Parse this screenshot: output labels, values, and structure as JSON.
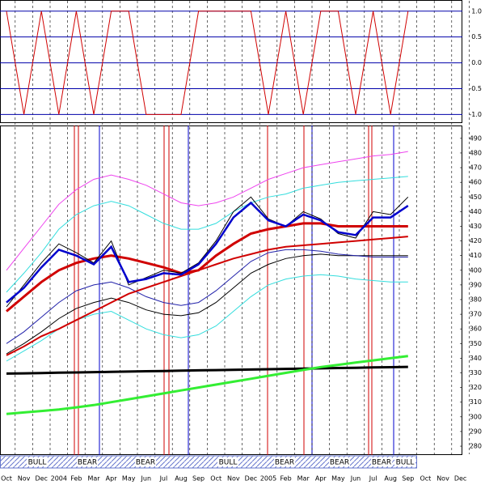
{
  "chart_data": [
    {
      "type": "line",
      "ylim": [
        -1.15,
        1.2
      ],
      "yticks": [
        {
          "value": 1,
          "label": "1.0"
        },
        0.5,
        {
          "value": 0,
          "label": "0.0"
        },
        -0.5,
        {
          "value": -1,
          "label": "-1.0"
        }
      ],
      "series": [
        {
          "color": "#d00000",
          "width": 1,
          "values": [
            1,
            -1,
            1,
            -1,
            1,
            -1,
            1,
            1,
            -1,
            -1,
            -1,
            1,
            1,
            1,
            1,
            -1,
            1,
            -1,
            1,
            1,
            -1,
            1,
            -1,
            1,
            null,
            null,
            null
          ]
        }
      ]
    },
    {
      "type": "line",
      "categories": [
        "Oct",
        "Nov",
        "Dec",
        "2004",
        "Feb",
        "Mar",
        "Apr",
        "May",
        "Jun",
        "Jul",
        "Aug",
        "Sep",
        "Oct",
        "Nov",
        "Dec",
        "2005",
        "Feb",
        "Mar",
        "Apr",
        "May",
        "Jun",
        "Jul",
        "Aug",
        "Sep",
        "Oct",
        "Nov",
        "Dec"
      ],
      "ylim": [
        274.5,
        498.2
      ],
      "yticks": [
        490,
        480,
        470,
        460,
        450,
        440,
        430,
        420,
        410,
        400,
        390,
        380,
        370,
        360,
        350,
        340,
        330,
        320,
        310,
        300,
        290,
        280
      ],
      "grid": true,
      "regimes": [
        "BULL",
        "BEAR",
        "BEAR",
        "BULL",
        "BEAR",
        "BEAR",
        "BEAR",
        "BULL"
      ],
      "series": [
        {
          "color": "#ee44ee",
          "width": 1,
          "values": [
            400,
            415,
            430,
            445,
            455,
            462,
            465,
            462,
            458,
            452,
            446,
            444,
            446,
            450,
            456,
            462,
            466,
            470,
            472,
            474,
            476,
            478,
            479,
            481,
            null,
            null,
            null
          ]
        },
        {
          "color": "#33dddd",
          "width": 1,
          "values": [
            385,
            398,
            412,
            428,
            438,
            444,
            447,
            444,
            438,
            432,
            428,
            428,
            432,
            440,
            446,
            450,
            452,
            456,
            458,
            460,
            461,
            462,
            463,
            464,
            null,
            null,
            null
          ]
        },
        {
          "color": "#33dddd",
          "width": 1,
          "values": [
            338,
            345,
            352,
            360,
            366,
            370,
            372,
            366,
            360,
            356,
            354,
            356,
            362,
            372,
            382,
            390,
            394,
            396,
            397,
            396,
            394,
            393,
            392,
            392,
            null,
            null,
            null
          ]
        },
        {
          "color": "#000000",
          "width": 1,
          "values": [
            343,
            350,
            358,
            367,
            374,
            378,
            381,
            378,
            373,
            370,
            369,
            371,
            378,
            388,
            398,
            404,
            408,
            410,
            411,
            410,
            410,
            410,
            410,
            410,
            null,
            null,
            null
          ]
        },
        {
          "color": "#2222aa",
          "width": 1,
          "values": [
            350,
            358,
            368,
            378,
            386,
            390,
            392,
            388,
            382,
            378,
            376,
            378,
            386,
            396,
            406,
            412,
            414,
            414,
            413,
            411,
            410,
            409,
            409,
            409,
            null,
            null,
            null
          ]
        },
        {
          "color": "#d00000",
          "width": 3,
          "values": [
            372,
            382,
            392,
            400,
            405,
            408,
            410,
            408,
            405,
            402,
            398,
            400,
            410,
            418,
            425,
            428,
            430,
            432,
            432,
            430,
            430,
            430,
            430,
            430,
            null,
            null,
            null
          ]
        },
        {
          "color": "#d00000",
          "width": 2,
          "values": [
            342,
            348,
            355,
            360,
            366,
            372,
            378,
            384,
            388,
            392,
            396,
            400,
            404,
            408,
            411,
            414,
            416,
            417,
            418,
            419,
            420,
            421,
            422,
            423,
            null,
            null,
            null
          ]
        },
        {
          "color": "#000000",
          "width": 3,
          "values": [
            329.5,
            329.7,
            329.9,
            330.1,
            330.3,
            330.5,
            330.7,
            330.9,
            331.1,
            331.3,
            331.5,
            331.7,
            331.9,
            332.1,
            332.3,
            332.5,
            332.7,
            332.9,
            333.1,
            333.3,
            333.5,
            333.7,
            333.9,
            334.1,
            null,
            null,
            null
          ]
        },
        {
          "color": "#33ee33",
          "width": 3,
          "values": [
            302,
            303,
            304,
            305,
            306.5,
            308,
            310,
            312,
            314,
            316,
            318,
            320,
            322,
            324,
            326,
            328,
            330,
            332,
            334,
            335.5,
            337,
            338.5,
            340,
            341.5,
            null,
            null,
            null
          ]
        },
        {
          "color": "#000000",
          "width": 1,
          "values": [
            375,
            390,
            405,
            418,
            412,
            405,
            420,
            390,
            395,
            400,
            398,
            405,
            420,
            440,
            450,
            435,
            430,
            440,
            435,
            425,
            422,
            440,
            438,
            450,
            null,
            null,
            null
          ]
        },
        {
          "color": "#0000cc",
          "width": 2.5,
          "values": [
            378,
            388,
            402,
            414,
            410,
            404,
            416,
            392,
            394,
            398,
            397,
            404,
            418,
            436,
            446,
            434,
            430,
            438,
            434,
            426,
            424,
            436,
            436,
            444,
            null,
            null,
            null
          ]
        }
      ]
    }
  ]
}
